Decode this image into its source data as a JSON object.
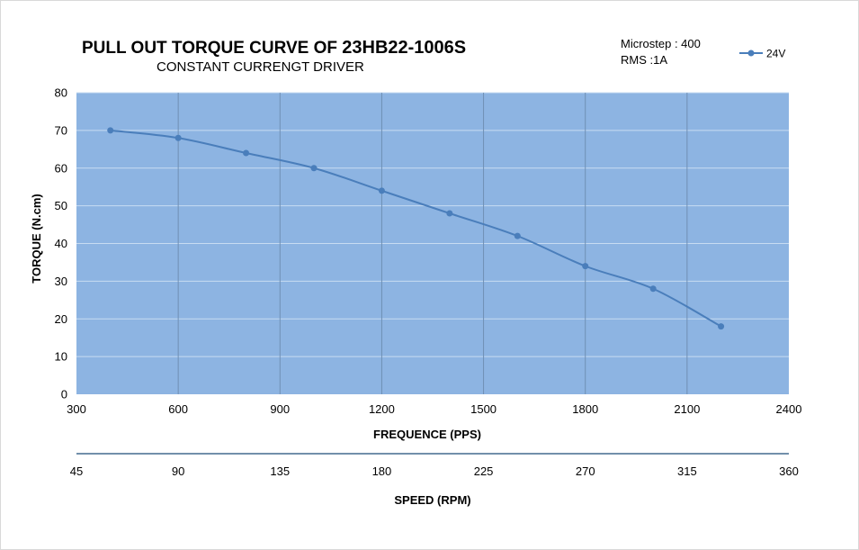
{
  "header": {
    "title_main": "PULL OUT TORQUE CURVE OF",
    "title_model": "23HB22-1006S",
    "subtitle": "CONSTANT CURRENGT DRIVER",
    "notes": [
      "Microstep : 400",
      "RMS :1A"
    ]
  },
  "chart_data": {
    "type": "line",
    "title": "PULL OUT TORQUE CURVE OF 23HB22-1006S",
    "subtitle": "CONSTANT CURRENGT DRIVER",
    "xlabel": "FREQUENCE (PPS)",
    "ylabel": "TORQUE (N.cm)",
    "secondary_xlabel": "SPEED (RPM)",
    "xlim": [
      300,
      2400
    ],
    "ylim": [
      0,
      80
    ],
    "xticks": [
      300,
      600,
      900,
      1200,
      1500,
      1800,
      2100,
      2400
    ],
    "yticks": [
      0,
      10,
      20,
      30,
      40,
      50,
      60,
      70,
      80
    ],
    "secondary_xticks": [
      45,
      90,
      135,
      180,
      225,
      270,
      315,
      360
    ],
    "grid": true,
    "legend": "top-right",
    "plot_background": "#8db4e2",
    "series": [
      {
        "name": "24V",
        "color": "#4a7ebb",
        "x": [
          400,
          600,
          800,
          1000,
          1200,
          1400,
          1600,
          1800,
          2000,
          2200
        ],
        "y": [
          70,
          68,
          64,
          60,
          54,
          48,
          42,
          34,
          28,
          18
        ]
      }
    ]
  }
}
